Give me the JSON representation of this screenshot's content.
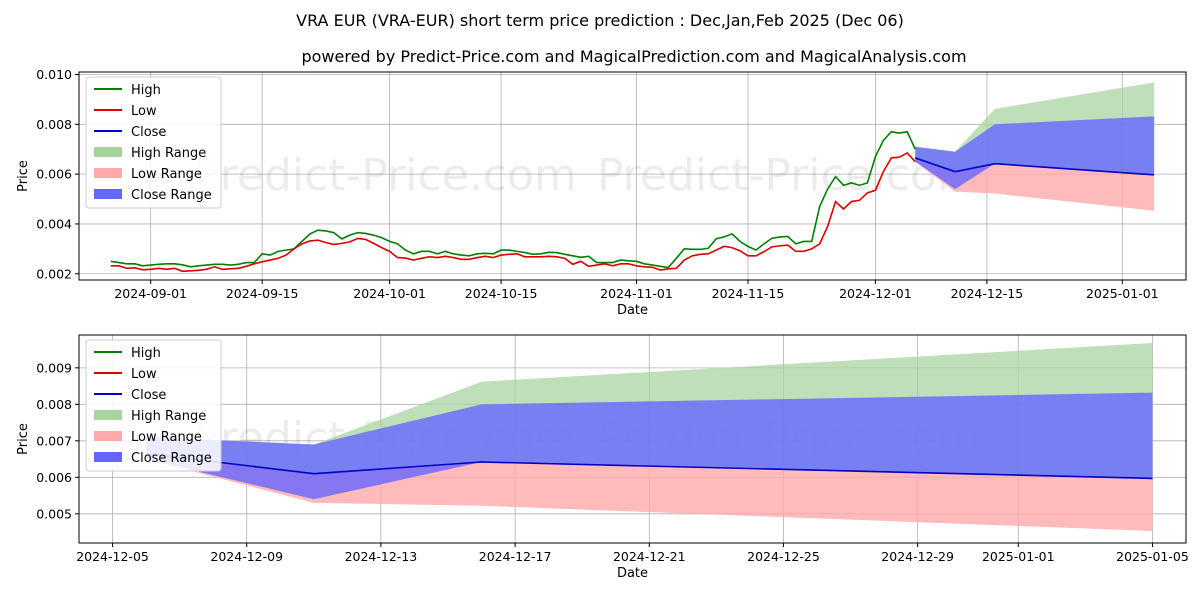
{
  "titles": {
    "main": "VRA EUR (VRA-EUR) short term price prediction : Dec,Jan,Feb 2025 (Dec 06)",
    "sub": "powered by Predict-Price.com and MagicalPrediction.com and MagicalAnalysis.com"
  },
  "watermarks": [
    "Predict-Price.com",
    "Predict-Price.com",
    "Predict-Price.com",
    "Predict-Price.com"
  ],
  "colors": {
    "high": "#008000",
    "low": "#dd0000",
    "close": "#0000cc",
    "high_range": "#a8d4a0",
    "low_range": "#ffaaaa",
    "close_range": "#6666ff",
    "grid": "#b0b0b0"
  },
  "legend": [
    "High",
    "Low",
    "Close",
    "High Range",
    "Low Range",
    "Close Range"
  ],
  "chart_data": [
    {
      "type": "line",
      "name": "history-and-forecast",
      "xlabel": "Date",
      "ylabel": "Price",
      "grid": true,
      "legend_position": "top-left",
      "xlim": [
        "2024-08-23",
        "2025-01-09"
      ],
      "ylim": [
        0.00175,
        0.0101
      ],
      "x_ticks": [
        "2024-09-01",
        "2024-09-15",
        "2024-10-01",
        "2024-10-15",
        "2024-11-01",
        "2024-11-15",
        "2024-12-01",
        "2024-12-15",
        "2025-01-01"
      ],
      "y_ticks": [
        0.002,
        0.004,
        0.006,
        0.008,
        0.01
      ],
      "y_tick_labels": [
        "0.002",
        "0.004",
        "0.006",
        "0.008",
        "0.010"
      ],
      "history_start": "2024-08-27",
      "history": {
        "high": [
          0.0025,
          0.00245,
          0.0024,
          0.0024,
          0.00232,
          0.00235,
          0.00238,
          0.0024,
          0.0024,
          0.00236,
          0.00228,
          0.00232,
          0.00235,
          0.00238,
          0.00238,
          0.00235,
          0.00238,
          0.00245,
          0.00245,
          0.0028,
          0.00275,
          0.0029,
          0.00295,
          0.003,
          0.0033,
          0.0036,
          0.00375,
          0.00372,
          0.00365,
          0.0034,
          0.00355,
          0.00365,
          0.00362,
          0.00355,
          0.00345,
          0.0033,
          0.0032,
          0.00295,
          0.0028,
          0.0029,
          0.0029,
          0.0028,
          0.0029,
          0.0028,
          0.00275,
          0.00272,
          0.0028,
          0.00282,
          0.0028,
          0.00295,
          0.00295,
          0.0029,
          0.00285,
          0.00278,
          0.0028,
          0.00286,
          0.00285,
          0.00278,
          0.00272,
          0.00266,
          0.0027,
          0.00245,
          0.00245,
          0.00245,
          0.00255,
          0.00252,
          0.0025,
          0.0024,
          0.00235,
          0.0023,
          0.00225,
          0.00262,
          0.003,
          0.00298,
          0.00298,
          0.00302,
          0.0034,
          0.00348,
          0.0036,
          0.0033,
          0.0031,
          0.00295,
          0.0032,
          0.00342,
          0.00348,
          0.0035,
          0.0032,
          0.0033,
          0.0033,
          0.0047,
          0.0054,
          0.0059,
          0.00555,
          0.00565,
          0.00555,
          0.00565,
          0.0067,
          0.00735,
          0.0077,
          0.00765,
          0.0077,
          0.007
        ],
        "low": [
          0.00232,
          0.00232,
          0.00222,
          0.00224,
          0.00216,
          0.00218,
          0.00222,
          0.00218,
          0.00222,
          0.0021,
          0.00212,
          0.00214,
          0.00218,
          0.00228,
          0.00218,
          0.0022,
          0.00222,
          0.0023,
          0.0024,
          0.00248,
          0.00255,
          0.00262,
          0.00275,
          0.003,
          0.0032,
          0.00332,
          0.00335,
          0.00325,
          0.00318,
          0.00322,
          0.00328,
          0.00342,
          0.00338,
          0.00322,
          0.00305,
          0.0029,
          0.00265,
          0.00263,
          0.00255,
          0.00262,
          0.00268,
          0.00265,
          0.0027,
          0.00265,
          0.00258,
          0.00258,
          0.00265,
          0.0027,
          0.00265,
          0.00275,
          0.00278,
          0.0028,
          0.00268,
          0.00268,
          0.00268,
          0.0027,
          0.00268,
          0.00262,
          0.00238,
          0.0025,
          0.0023,
          0.00235,
          0.0024,
          0.00232,
          0.0024,
          0.0024,
          0.00232,
          0.00228,
          0.00226,
          0.00215,
          0.0022,
          0.00222,
          0.00255,
          0.00272,
          0.00278,
          0.0028,
          0.00295,
          0.0031,
          0.00305,
          0.00292,
          0.00272,
          0.00272,
          0.00288,
          0.00308,
          0.00312,
          0.00315,
          0.0029,
          0.0029,
          0.003,
          0.0032,
          0.0039,
          0.0049,
          0.0046,
          0.0049,
          0.00495,
          0.00525,
          0.00535,
          0.0061,
          0.00665,
          0.00668,
          0.00685,
          0.0065
        ]
      },
      "forecast": {
        "dates": [
          "2024-12-06",
          "2024-12-11",
          "2024-12-16",
          "2025-01-05"
        ],
        "close": [
          0.00665,
          0.0061,
          0.00642,
          0.00597
        ],
        "close_range_upper": [
          0.0071,
          0.0069,
          0.008,
          0.00832
        ],
        "close_range_lower": [
          0.0065,
          0.0054,
          0.00642,
          0.00597
        ],
        "high_range_upper": [
          0.0071,
          0.0069,
          0.00862,
          0.00968
        ],
        "low_range_lower": [
          0.0065,
          0.0053,
          0.00522,
          0.00453
        ]
      }
    },
    {
      "type": "area",
      "name": "forecast-zoom",
      "xlabel": "Date",
      "ylabel": "Price",
      "grid": true,
      "legend_position": "top-left",
      "xlim": [
        "2024-12-04",
        "2025-01-06"
      ],
      "ylim": [
        0.0042,
        0.0099
      ],
      "x_ticks": [
        "2024-12-05",
        "2024-12-09",
        "2024-12-13",
        "2024-12-17",
        "2024-12-21",
        "2024-12-25",
        "2024-12-29",
        "2025-01-01",
        "2025-01-05"
      ],
      "y_ticks": [
        0.005,
        0.006,
        0.007,
        0.008,
        0.009
      ],
      "y_tick_labels": [
        "0.005",
        "0.006",
        "0.007",
        "0.008",
        "0.009"
      ]
    }
  ]
}
